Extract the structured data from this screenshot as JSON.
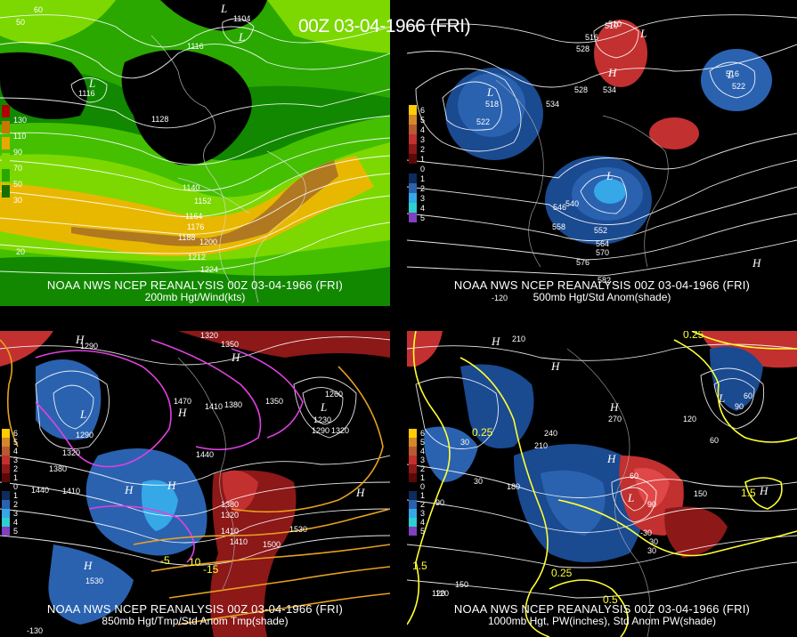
{
  "title": "00Z 03-04-1966 (FRI)",
  "panels": [
    {
      "id": "p200",
      "caption1": "NOAA NWS NCEP REANALYSIS 00Z 03-04-1966 (FRI)",
      "caption2": "200mb Hgt/Wind(kts)",
      "colorbar": [
        {
          "label": "130",
          "color": "#b00000"
        },
        {
          "label": "110",
          "color": "#c87800"
        },
        {
          "label": "90",
          "color": "#e8a800"
        },
        {
          "label": "70",
          "color": "#7cd800"
        },
        {
          "label": "50",
          "color": "#2aa800"
        },
        {
          "label": "30",
          "color": "#167000"
        }
      ],
      "contour_labels": [
        "1104",
        "1116",
        "1116",
        "1128",
        "1140",
        "1152",
        "1164",
        "1176",
        "1188",
        "1200",
        "1212",
        "1224",
        "50",
        "20",
        "60"
      ],
      "centers": [
        "L",
        "L",
        "L"
      ]
    },
    {
      "id": "p500",
      "caption1": "NOAA NWS NCEP REANALYSIS 00Z 03-04-1966 (FRI)",
      "caption2": "500mb Hgt/Std Anom(shade)",
      "colorbar": [
        {
          "label": "6",
          "color": "#ffcc00"
        },
        {
          "label": "5",
          "color": "#d4882a"
        },
        {
          "label": "4",
          "color": "#b85a30"
        },
        {
          "label": "3",
          "color": "#c23030"
        },
        {
          "label": "2",
          "color": "#8c1818"
        },
        {
          "label": "1",
          "color": "#5c0808"
        },
        {
          "label": "0",
          "color": "#000000"
        },
        {
          "label": "1",
          "color": "#102a5a"
        },
        {
          "label": "2",
          "color": "#2a62b0"
        },
        {
          "label": "3",
          "color": "#36a8e8"
        },
        {
          "label": "4",
          "color": "#2cd0d0"
        },
        {
          "label": "5",
          "color": "#8040c0"
        }
      ],
      "contour_labels": [
        "510",
        "516",
        "518",
        "522",
        "528",
        "534",
        "534",
        "522",
        "516",
        "540",
        "546",
        "552",
        "558",
        "564",
        "570",
        "576",
        "582",
        "528",
        "510",
        "-120"
      ],
      "centers": [
        "L",
        "L",
        "L",
        "L",
        "H",
        "H"
      ]
    },
    {
      "id": "p850",
      "caption1": "NOAA NWS NCEP REANALYSIS 00Z 03-04-1966 (FRI)",
      "caption2": "850mb Hgt/Tmp/Std Anom Tmp(shade)",
      "colorbar": [
        {
          "label": "6",
          "color": "#ffcc00"
        },
        {
          "label": "5",
          "color": "#d4882a"
        },
        {
          "label": "4",
          "color": "#b85a30"
        },
        {
          "label": "3",
          "color": "#c23030"
        },
        {
          "label": "2",
          "color": "#8c1818"
        },
        {
          "label": "1",
          "color": "#5c0808"
        },
        {
          "label": "0",
          "color": "#000000"
        },
        {
          "label": "1",
          "color": "#102a5a"
        },
        {
          "label": "2",
          "color": "#2a62b0"
        },
        {
          "label": "3",
          "color": "#36a8e8"
        },
        {
          "label": "4",
          "color": "#2cd0d0"
        },
        {
          "label": "5",
          "color": "#8040c0"
        }
      ],
      "contour_labels": [
        "1320",
        "1350",
        "1260",
        "1230",
        "1290",
        "1320",
        "1290",
        "1470",
        "1410",
        "1380",
        "1350",
        "1440",
        "1380",
        "1410",
        "1320",
        "1410",
        "1500",
        "1530",
        "1530",
        "1440",
        "1410",
        "1290",
        "1320",
        "1380",
        "-5",
        "10",
        "-15",
        "-130"
      ],
      "centers": [
        "H",
        "L",
        "H",
        "H",
        "L",
        "H",
        "H",
        "H",
        "H"
      ]
    },
    {
      "id": "p1000",
      "caption1": "NOAA NWS NCEP REANALYSIS 00Z 03-04-1966 (FRI)",
      "caption2": "1000mb Hgt, PW(inches), Std Anom PW(shade)",
      "colorbar": [
        {
          "label": "6",
          "color": "#ffcc00"
        },
        {
          "label": "5",
          "color": "#d4882a"
        },
        {
          "label": "4",
          "color": "#b85a30"
        },
        {
          "label": "3",
          "color": "#c23030"
        },
        {
          "label": "2",
          "color": "#8c1818"
        },
        {
          "label": "1",
          "color": "#5c0808"
        },
        {
          "label": "0",
          "color": "#000000"
        },
        {
          "label": "1",
          "color": "#102a5a"
        },
        {
          "label": "2",
          "color": "#2a62b0"
        },
        {
          "label": "3",
          "color": "#36a8e8"
        },
        {
          "label": "4",
          "color": "#2cd0d0"
        },
        {
          "label": "5",
          "color": "#8040c0"
        }
      ],
      "contour_labels": [
        "210",
        "240",
        "180",
        "120",
        "90",
        "60",
        "30",
        "30",
        "90",
        "150",
        "120",
        "60",
        "30",
        "0.25",
        "0.25",
        "0.25",
        "0.5",
        "1.5",
        "1.5",
        "-30",
        "90",
        "60",
        "210",
        "270",
        "150",
        "120",
        "30"
      ],
      "centers": [
        "H",
        "H",
        "H",
        "H",
        "L",
        "L",
        "H"
      ]
    }
  ]
}
